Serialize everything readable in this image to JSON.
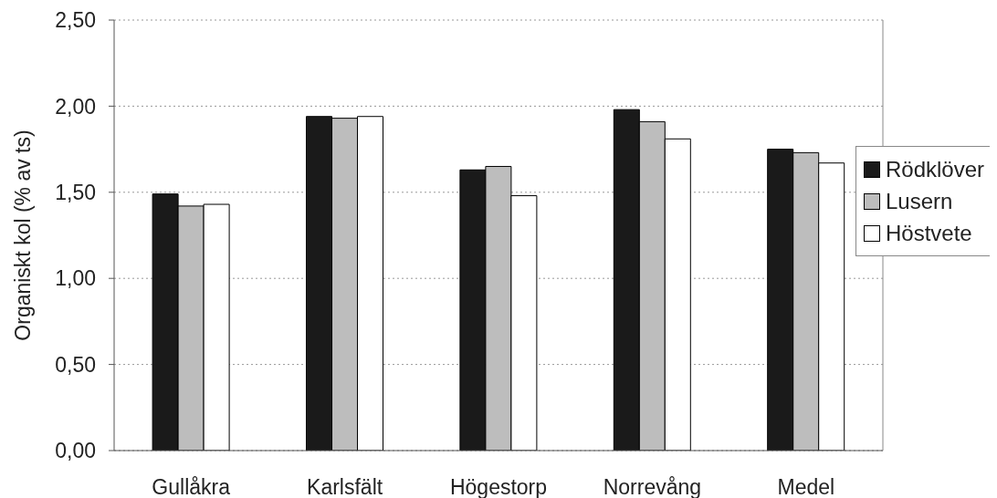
{
  "chart_data": {
    "type": "bar",
    "ylabel": "Organiskt kol (% av ts)",
    "categories": [
      "Gullåkra",
      "Karlsfält",
      "Högestorp",
      "Norrevång",
      "Medel"
    ],
    "series": [
      {
        "name": "Rödklöver",
        "color": "#1a1a1a",
        "values": [
          1.49,
          1.94,
          1.63,
          1.98,
          1.75
        ]
      },
      {
        "name": "Lusern",
        "color": "#bdbdbd",
        "values": [
          1.42,
          1.93,
          1.65,
          1.91,
          1.73
        ]
      },
      {
        "name": "Höstvete",
        "color": "#ffffff",
        "values": [
          1.43,
          1.94,
          1.48,
          1.81,
          1.67
        ]
      }
    ],
    "ylim": [
      0,
      2.5
    ],
    "yticks": [
      {
        "value": 0,
        "label": "0,00"
      },
      {
        "value": 0.5,
        "label": "0,50"
      },
      {
        "value": 1,
        "label": "1,00"
      },
      {
        "value": 1.5,
        "label": "1,50"
      },
      {
        "value": 2,
        "label": "2,00"
      },
      {
        "value": 2.5,
        "label": "2,50"
      }
    ],
    "grid": "y",
    "legend": "right"
  }
}
